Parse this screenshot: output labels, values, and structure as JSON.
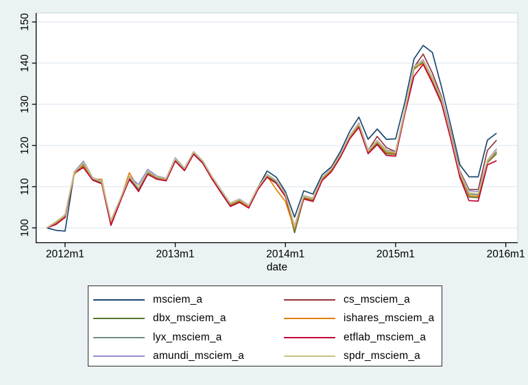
{
  "figure": {
    "background": "#eaf2f3",
    "plot_background": "#ffffff",
    "plot_border_color": "#c9d7e0",
    "grid_color": "#d7e3ee",
    "axis_color": "#000000",
    "xlabel": "date"
  },
  "chart_data": {
    "type": "line",
    "title": "",
    "xlabel": "date",
    "ylabel": "",
    "grid": true,
    "legend_position": "bottom",
    "ylim": [
      96.5,
      152
    ],
    "y_ticks": [
      100,
      110,
      120,
      130,
      140,
      150
    ],
    "x_tick_labels": [
      "2012m1",
      "2013m1",
      "2014m1",
      "2015m1",
      "2016m1"
    ],
    "x_tick_month_indices": [
      2,
      14,
      26,
      38,
      50
    ],
    "months": [
      "2011m11",
      "2011m12",
      "2012m1",
      "2012m2",
      "2012m3",
      "2012m4",
      "2012m5",
      "2012m6",
      "2012m7",
      "2012m8",
      "2012m9",
      "2012m10",
      "2012m11",
      "2012m12",
      "2013m1",
      "2013m2",
      "2013m3",
      "2013m4",
      "2013m5",
      "2013m6",
      "2013m7",
      "2013m8",
      "2013m9",
      "2013m10",
      "2013m11",
      "2013m12",
      "2014m1",
      "2014m2",
      "2014m3",
      "2014m4",
      "2014m5",
      "2014m6",
      "2014m7",
      "2014m8",
      "2014m9",
      "2014m10",
      "2014m11",
      "2014m12",
      "2015m1",
      "2015m2",
      "2015m3",
      "2015m4",
      "2015m5",
      "2015m6",
      "2015m7",
      "2015m8",
      "2015m9",
      "2015m10",
      "2015m11",
      "2015m12"
    ],
    "series": [
      {
        "name": "msciem_a",
        "color": "#1a476f",
        "values": [
          100,
          99.4,
          99.2,
          113.4,
          115.0,
          111.9,
          111.0,
          101.4,
          106.6,
          111.9,
          109.3,
          113.4,
          112.3,
          111.7,
          116.5,
          114.2,
          118.2,
          116.0,
          112.3,
          109.0,
          105.7,
          106.7,
          105.2,
          109.8,
          113.8,
          112.3,
          108.8,
          102.6,
          109.0,
          108.2,
          112.9,
          114.8,
          118.6,
          123.4,
          126.9,
          121.5,
          124.0,
          121.5,
          121.6,
          130.4,
          141.0,
          144.3,
          142.6,
          134.2,
          124.9,
          115.3,
          112.4,
          112.4,
          121.3,
          123.0
        ]
      },
      {
        "name": "cs_msciem_a",
        "color": "#90353b",
        "values": [
          100,
          101.0,
          102.8,
          113.1,
          114.8,
          111.7,
          110.9,
          101.2,
          106.4,
          111.7,
          109.0,
          113.1,
          112.0,
          111.5,
          116.2,
          113.9,
          117.9,
          115.7,
          112.0,
          108.7,
          105.4,
          106.4,
          104.9,
          109.5,
          112.9,
          111.1,
          108.0,
          100.3,
          107.8,
          107.2,
          112.0,
          114.2,
          117.8,
          122.2,
          125.4,
          118.8,
          122.2,
          119.5,
          118.5,
          128.5,
          139.0,
          142.2,
          137.6,
          131.8,
          123.2,
          113.8,
          109.3,
          109.3,
          118.8,
          121.3
        ]
      },
      {
        "name": "dbx_msciem_a",
        "color": "#55752f",
        "values": [
          100,
          101.2,
          102.9,
          113.2,
          115.4,
          111.7,
          110.8,
          101.2,
          106.4,
          112.2,
          109.0,
          113.2,
          112.0,
          111.5,
          116.3,
          114.0,
          118.0,
          115.8,
          112.0,
          108.6,
          105.4,
          106.4,
          104.9,
          109.4,
          112.4,
          111.0,
          107.8,
          98.8,
          107.2,
          106.6,
          111.7,
          113.8,
          117.4,
          121.8,
          124.8,
          118.2,
          120.5,
          118.0,
          117.8,
          127.8,
          138.5,
          140.2,
          135.8,
          130.8,
          122.2,
          112.8,
          107.5,
          107.3,
          115.8,
          118.0
        ]
      },
      {
        "name": "ishares_msciem_a",
        "color": "#e37e00",
        "values": [
          100,
          101.0,
          102.7,
          113.0,
          115.2,
          111.8,
          111.8,
          101.3,
          106.6,
          113.4,
          109.5,
          113.3,
          112.1,
          111.6,
          116.4,
          114.1,
          118.1,
          115.9,
          111.8,
          108.8,
          105.6,
          106.6,
          105.0,
          109.5,
          112.6,
          109.3,
          106.4,
          99.6,
          107.4,
          106.8,
          111.9,
          114.0,
          117.6,
          122.0,
          125.0,
          118.4,
          120.8,
          118.3,
          118.0,
          128.0,
          138.8,
          139.9,
          136.0,
          131.0,
          122.4,
          113.0,
          107.8,
          107.6,
          116.0,
          118.3
        ]
      },
      {
        "name": "lyx_msciem_a",
        "color": "#6e8e84",
        "values": [
          100,
          101.3,
          103.0,
          113.3,
          115.6,
          112.0,
          111.1,
          101.6,
          106.8,
          112.3,
          109.6,
          113.5,
          112.2,
          111.8,
          116.6,
          114.3,
          118.3,
          116.1,
          112.2,
          108.9,
          105.8,
          106.8,
          105.3,
          109.7,
          112.8,
          111.3,
          108.1,
          100.0,
          107.6,
          107.0,
          112.1,
          114.2,
          117.8,
          122.2,
          125.2,
          118.6,
          121.0,
          118.6,
          118.2,
          128.2,
          139.0,
          140.5,
          136.2,
          131.2,
          122.6,
          113.2,
          108.2,
          108.0,
          116.2,
          118.5
        ]
      },
      {
        "name": "etflab_msciem_a",
        "color": "#c10534",
        "values": [
          100,
          100.8,
          102.5,
          113.5,
          114.6,
          111.6,
          110.7,
          100.6,
          106.3,
          112.0,
          108.8,
          113.0,
          111.8,
          111.4,
          116.2,
          113.9,
          117.9,
          115.7,
          111.9,
          108.5,
          105.2,
          106.2,
          104.8,
          109.3,
          112.3,
          110.8,
          107.6,
          100.2,
          107.0,
          106.4,
          111.5,
          113.6,
          117.2,
          121.6,
          124.4,
          118.0,
          120.2,
          117.6,
          117.4,
          127.6,
          136.8,
          139.7,
          135.2,
          130.2,
          121.6,
          112.2,
          106.6,
          106.5,
          115.3,
          116.3
        ]
      },
      {
        "name": "amundi_msciem_a",
        "color": "#938dd2",
        "values": [
          100,
          101.4,
          103.2,
          113.6,
          116.2,
          112.2,
          111.3,
          101.8,
          107.0,
          112.5,
          110.5,
          114.2,
          112.6,
          112.0,
          117.0,
          114.5,
          118.5,
          116.3,
          112.5,
          109.2,
          106.0,
          107.0,
          105.5,
          109.9,
          113.0,
          111.5,
          108.3,
          100.4,
          107.8,
          107.2,
          112.3,
          114.4,
          118.0,
          122.4,
          125.5,
          118.9,
          121.2,
          118.9,
          118.4,
          128.4,
          139.2,
          140.8,
          136.5,
          131.5,
          122.8,
          113.5,
          109.0,
          108.8,
          116.4,
          119.2
        ]
      },
      {
        "name": "spdr_msciem_a",
        "color": "#cac27e",
        "values": [
          100,
          101.5,
          103.1,
          113.4,
          115.8,
          112.1,
          111.2,
          101.7,
          106.9,
          112.4,
          109.8,
          113.8,
          112.4,
          111.9,
          116.8,
          114.4,
          118.4,
          116.2,
          112.4,
          109.1,
          105.9,
          106.9,
          105.4,
          109.8,
          112.9,
          111.4,
          108.2,
          100.2,
          107.7,
          107.1,
          112.2,
          114.3,
          117.9,
          122.3,
          125.3,
          118.7,
          121.1,
          118.7,
          118.3,
          128.3,
          139.1,
          140.6,
          136.3,
          131.3,
          122.7,
          113.3,
          108.5,
          108.3,
          116.3,
          118.9
        ]
      }
    ]
  }
}
